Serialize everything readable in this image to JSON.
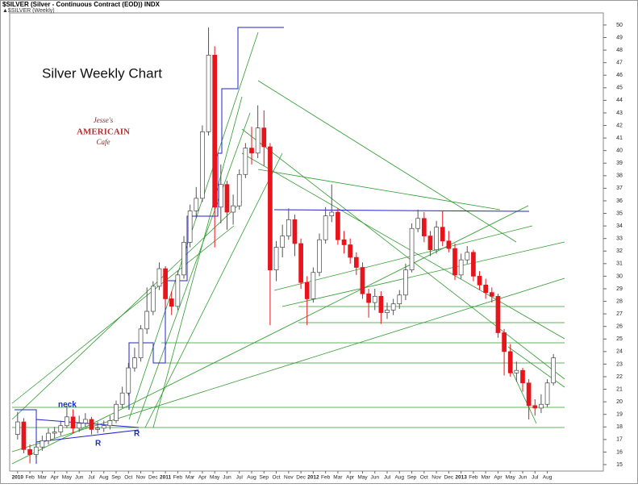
{
  "header": {
    "symbol_line": "$SILVER (Silver - Continuous Contract (EOD)) INDX",
    "legend_line": "▲$SILVER (Weekly)"
  },
  "logo": {
    "line1": "Jesse's",
    "line2": "AMERICAIN",
    "line3": "Cafe"
  },
  "chart_data": {
    "type": "candlestick",
    "title": "Silver Weekly Chart",
    "annotations": [
      "neck",
      "R",
      "R"
    ],
    "up_color": "#ffffff",
    "down_color": "#e8141c",
    "wick_color": "#555555",
    "x": [
      "2010",
      null,
      "Feb",
      null,
      "Mar",
      null,
      "Apr",
      null,
      "May",
      null,
      "Jun",
      null,
      "Jul",
      null,
      "Aug",
      null,
      "Sep",
      null,
      "Oct",
      null,
      "Nov",
      null,
      "Dec",
      null,
      "2011",
      null,
      "Feb",
      null,
      "Mar",
      null,
      "Apr",
      null,
      "May",
      null,
      "Jun",
      null,
      "Jul",
      null,
      "Aug",
      null,
      "Sep",
      null,
      "Oct",
      null,
      "Nov",
      null,
      "Dec",
      null,
      "2012",
      null,
      "Feb",
      null,
      "Mar",
      null,
      "Apr",
      null,
      "May",
      null,
      "Jun",
      null,
      "Jul",
      null,
      "Aug",
      null,
      "Sep",
      null,
      "Oct",
      null,
      "Nov",
      null,
      "Dec",
      null,
      "2013",
      null,
      "Feb",
      null,
      "Mar",
      null,
      "Apr",
      null,
      "May",
      null,
      "Jun",
      null,
      "Jul",
      null,
      "Aug",
      null
    ],
    "open": [
      17.4,
      18.4,
      16.2,
      15.8,
      16.4,
      16.9,
      17.5,
      17.6,
      18.1,
      18.8,
      17.9,
      18.3,
      18.6,
      17.8,
      17.9,
      18.1,
      18.5,
      19.8,
      20.7,
      22.7,
      23.5,
      25.8,
      27.2,
      29.2,
      30.6,
      28.2,
      27.6,
      30.1,
      32.7,
      35.2,
      36.2,
      41.5,
      47.6,
      35.5,
      37.3,
      35.1,
      35.6,
      38.1,
      40.2,
      39.8,
      41.8,
      40.3,
      30.5,
      32.3,
      33.2,
      34.5,
      32.6,
      29.5,
      28.2,
      30.3,
      32.9,
      34.8,
      35.1,
      32.9,
      32.5,
      31.5,
      30.7,
      28.6,
      27.9,
      28.4,
      27.1,
      27.3,
      27.8,
      28.5,
      30.5,
      33.8,
      34.6,
      33.2,
      32.1,
      33.9,
      32.8,
      32.2,
      30.1,
      31.3,
      31.9,
      30.0,
      29.3,
      28.7,
      28.4,
      25.5,
      24.0,
      22.3,
      22.5,
      21.5,
      19.7,
      19.5,
      19.8,
      21.5
    ],
    "high": [
      19.2,
      18.7,
      16.6,
      16.7,
      17.3,
      17.9,
      18.0,
      18.5,
      19.7,
      19.4,
      18.9,
      19.1,
      18.8,
      18.4,
      18.5,
      18.9,
      20.1,
      21.2,
      23.1,
      24.3,
      26.1,
      29.1,
      29.6,
      31.1,
      30.8,
      28.8,
      30.4,
      33.2,
      35.7,
      37.1,
      42.0,
      49.8,
      48.3,
      38.9,
      37.6,
      36.5,
      38.5,
      40.6,
      41.9,
      43.6,
      43.2,
      40.6,
      32.8,
      34.1,
      35.4,
      34.9,
      33.0,
      30.0,
      30.7,
      33.4,
      35.5,
      37.3,
      35.4,
      33.6,
      33.0,
      31.9,
      31.1,
      29.0,
      29.0,
      28.8,
      27.9,
      28.2,
      28.9,
      31.0,
      34.2,
      35.3,
      35.1,
      33.6,
      34.4,
      35.2,
      33.6,
      32.6,
      31.8,
      32.4,
      32.1,
      30.4,
      29.8,
      29.1,
      28.6,
      25.8,
      24.6,
      23.2,
      22.7,
      21.8,
      20.2,
      20.6,
      21.8,
      23.8
    ],
    "low": [
      17.0,
      15.9,
      15.1,
      15.5,
      16.1,
      16.6,
      17.1,
      17.3,
      17.9,
      17.5,
      17.6,
      18.0,
      17.4,
      17.5,
      17.6,
      17.8,
      18.3,
      19.5,
      20.5,
      22.4,
      23.2,
      25.4,
      26.9,
      28.9,
      27.5,
      26.9,
      27.3,
      29.8,
      32.3,
      34.6,
      35.9,
      41.2,
      32.3,
      34.2,
      33.7,
      34.1,
      35.3,
      37.8,
      38.9,
      39.4,
      38.8,
      26.1,
      29.6,
      31.5,
      32.9,
      31.6,
      29.0,
      26.1,
      27.9,
      30.0,
      32.6,
      34.3,
      32.5,
      31.8,
      31.0,
      30.1,
      28.2,
      26.7,
      27.3,
      26.2,
      26.6,
      26.9,
      27.4,
      28.1,
      30.3,
      33.5,
      32.7,
      31.6,
      31.8,
      32.4,
      31.9,
      29.7,
      29.8,
      31.0,
      29.6,
      28.9,
      28.2,
      27.9,
      25.1,
      22.1,
      22.0,
      21.6,
      20.8,
      18.6,
      18.9,
      19.1,
      19.6,
      21.3
    ],
    "close": [
      18.4,
      16.2,
      15.8,
      16.4,
      16.9,
      17.5,
      17.6,
      18.1,
      18.8,
      17.9,
      18.3,
      18.6,
      17.8,
      17.9,
      18.1,
      18.5,
      19.8,
      20.7,
      22.7,
      23.5,
      25.8,
      27.2,
      29.2,
      30.6,
      28.2,
      27.6,
      30.1,
      32.7,
      35.2,
      36.2,
      41.5,
      47.6,
      35.5,
      37.3,
      35.1,
      35.6,
      38.1,
      40.2,
      39.8,
      41.8,
      40.3,
      30.5,
      32.3,
      33.2,
      34.5,
      32.6,
      29.5,
      28.2,
      30.3,
      32.9,
      34.8,
      35.1,
      32.9,
      32.5,
      31.5,
      30.7,
      28.6,
      27.9,
      28.4,
      27.1,
      27.3,
      27.8,
      28.5,
      30.5,
      33.8,
      34.6,
      33.2,
      32.1,
      33.9,
      32.8,
      32.2,
      30.1,
      31.3,
      31.9,
      30.0,
      29.3,
      28.7,
      28.4,
      25.5,
      24.0,
      22.3,
      22.5,
      21.5,
      19.7,
      19.5,
      19.8,
      21.5,
      23.5
    ],
    "ylim": [
      14.3,
      50.8
    ],
    "yticks": [
      15,
      16,
      17,
      18,
      19,
      20,
      21,
      22,
      23,
      24,
      25,
      26,
      27,
      28,
      29,
      30,
      31,
      32,
      33,
      34,
      35,
      36,
      37,
      38,
      39,
      40,
      41,
      42,
      43,
      44,
      45,
      46,
      47,
      48,
      49,
      50
    ]
  }
}
